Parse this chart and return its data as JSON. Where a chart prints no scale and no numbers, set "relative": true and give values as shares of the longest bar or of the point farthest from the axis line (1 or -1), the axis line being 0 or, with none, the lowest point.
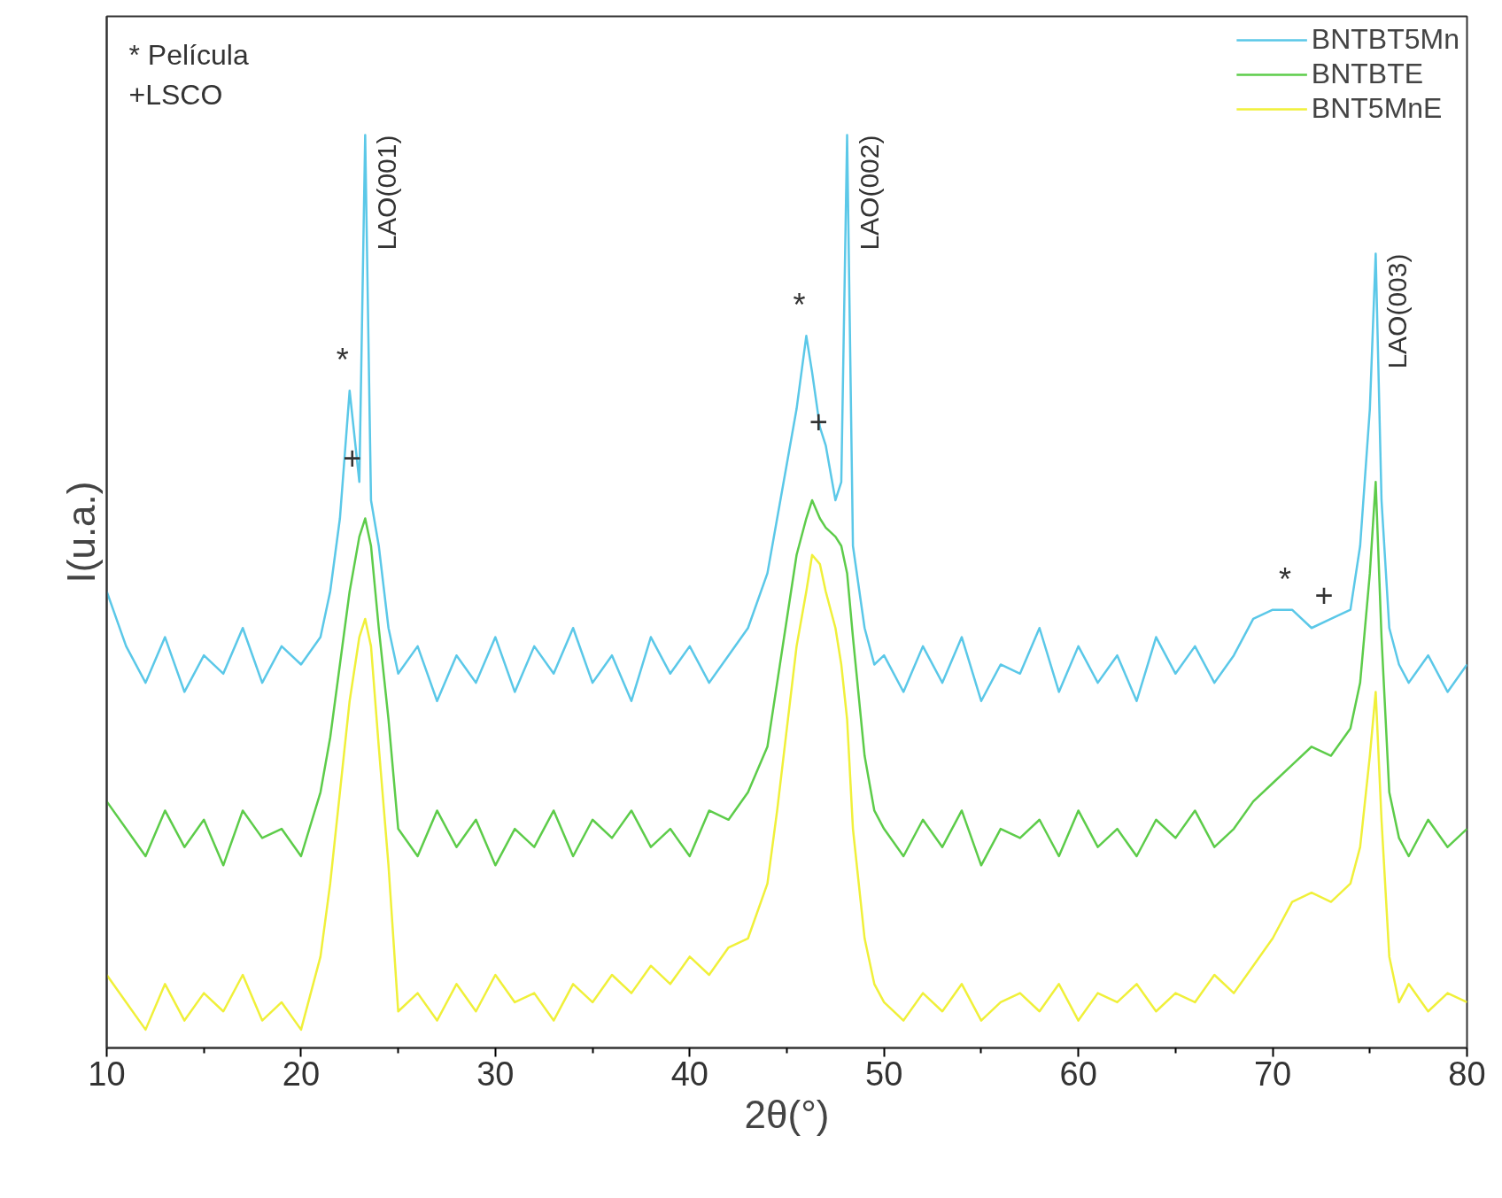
{
  "chart_data": {
    "type": "line",
    "relative": true,
    "xlabel": "2θ(°)",
    "ylabel": "I(u.a.)",
    "xlim": [
      10,
      80
    ],
    "xticks": [
      10,
      {
        "value": 15,
        "label": null
      },
      20,
      {
        "value": 25,
        "label": null
      },
      30,
      {
        "value": 35,
        "label": null
      },
      40,
      {
        "value": 45,
        "label": null
      },
      50,
      {
        "value": 55,
        "label": null
      },
      60,
      {
        "value": 65,
        "label": null
      },
      70,
      {
        "value": 75,
        "label": null
      },
      80
    ],
    "tick_labels": "x",
    "grid": false,
    "legend": "top right",
    "line_style": "solid",
    "marker": "none",
    "x": [
      10,
      11,
      12,
      13,
      14,
      15,
      16,
      17,
      18,
      19,
      20,
      21,
      21.5,
      22,
      22.5,
      23,
      23.3,
      23.6,
      24,
      24.5,
      25,
      26,
      27,
      28,
      29,
      30,
      31,
      32,
      33,
      34,
      35,
      36,
      37,
      38,
      39,
      40,
      41,
      42,
      43,
      44,
      44.5,
      45,
      45.5,
      46,
      46.3,
      46.7,
      47,
      47.5,
      47.8,
      48.1,
      48.4,
      49,
      49.5,
      50,
      51,
      52,
      53,
      54,
      55,
      56,
      57,
      58,
      59,
      60,
      61,
      62,
      63,
      64,
      65,
      66,
      67,
      68,
      69,
      70,
      71,
      72,
      73,
      74,
      74.5,
      75,
      75.3,
      75.6,
      76,
      76.5,
      77,
      78,
      79,
      80
    ],
    "series": [
      {
        "name": "BNTBT5Mn",
        "color": "#5bc8e8",
        "values": [
          0.5,
          0.44,
          0.4,
          0.45,
          0.39,
          0.43,
          0.41,
          0.46,
          0.4,
          0.44,
          0.42,
          0.45,
          0.5,
          0.58,
          0.72,
          0.62,
          1.0,
          0.6,
          0.55,
          0.46,
          0.41,
          0.44,
          0.38,
          0.43,
          0.4,
          0.45,
          0.39,
          0.44,
          0.41,
          0.46,
          0.4,
          0.43,
          0.38,
          0.45,
          0.41,
          0.44,
          0.4,
          0.43,
          0.46,
          0.52,
          0.58,
          0.64,
          0.7,
          0.78,
          0.74,
          0.68,
          0.66,
          0.6,
          0.62,
          1.0,
          0.55,
          0.46,
          0.42,
          0.43,
          0.39,
          0.44,
          0.4,
          0.45,
          0.38,
          0.42,
          0.41,
          0.46,
          0.39,
          0.44,
          0.4,
          0.43,
          0.38,
          0.45,
          0.41,
          0.44,
          0.4,
          0.43,
          0.47,
          0.48,
          0.48,
          0.46,
          0.47,
          0.48,
          0.55,
          0.7,
          0.87,
          0.6,
          0.46,
          0.42,
          0.4,
          0.43,
          0.39,
          0.42
        ]
      },
      {
        "name": "BNTBTE",
        "color": "#5dcc4a",
        "values": [
          0.27,
          0.24,
          0.21,
          0.26,
          0.22,
          0.25,
          0.2,
          0.26,
          0.23,
          0.24,
          0.21,
          0.28,
          0.34,
          0.42,
          0.5,
          0.56,
          0.58,
          0.55,
          0.46,
          0.36,
          0.24,
          0.21,
          0.26,
          0.22,
          0.25,
          0.2,
          0.24,
          0.22,
          0.26,
          0.21,
          0.25,
          0.23,
          0.26,
          0.22,
          0.24,
          0.21,
          0.26,
          0.25,
          0.28,
          0.33,
          0.4,
          0.47,
          0.54,
          0.58,
          0.6,
          0.58,
          0.57,
          0.56,
          0.55,
          0.52,
          0.45,
          0.32,
          0.26,
          0.24,
          0.21,
          0.25,
          0.22,
          0.26,
          0.2,
          0.24,
          0.23,
          0.25,
          0.21,
          0.26,
          0.22,
          0.24,
          0.21,
          0.25,
          0.23,
          0.26,
          0.22,
          0.24,
          0.27,
          0.29,
          0.31,
          0.33,
          0.32,
          0.35,
          0.4,
          0.52,
          0.62,
          0.45,
          0.28,
          0.23,
          0.21,
          0.25,
          0.22,
          0.24
        ]
      },
      {
        "name": "BNT5MnE",
        "color": "#f0f03a",
        "values": [
          0.08,
          0.05,
          0.02,
          0.07,
          0.03,
          0.06,
          0.04,
          0.08,
          0.03,
          0.05,
          0.02,
          0.1,
          0.18,
          0.28,
          0.38,
          0.45,
          0.47,
          0.44,
          0.33,
          0.2,
          0.04,
          0.06,
          0.03,
          0.07,
          0.04,
          0.08,
          0.05,
          0.06,
          0.03,
          0.07,
          0.05,
          0.08,
          0.06,
          0.09,
          0.07,
          0.1,
          0.08,
          0.11,
          0.12,
          0.18,
          0.26,
          0.35,
          0.44,
          0.5,
          0.54,
          0.53,
          0.5,
          0.46,
          0.42,
          0.36,
          0.24,
          0.12,
          0.07,
          0.05,
          0.03,
          0.06,
          0.04,
          0.07,
          0.03,
          0.05,
          0.06,
          0.04,
          0.07,
          0.03,
          0.06,
          0.05,
          0.07,
          0.04,
          0.06,
          0.05,
          0.08,
          0.06,
          0.09,
          0.12,
          0.16,
          0.17,
          0.16,
          0.18,
          0.22,
          0.32,
          0.39,
          0.25,
          0.1,
          0.05,
          0.07,
          0.04,
          0.06,
          0.05
        ]
      }
    ],
    "annotations": [
      "* Película",
      "+LSCO",
      {
        "text": "LAO(001)",
        "x": 23.3,
        "y": 1.0
      },
      {
        "text": "LAO(002)",
        "x": 48.1,
        "y": 1.0
      },
      {
        "text": "LAO(003)",
        "x": 75.3,
        "y": 0.87
      },
      {
        "text": "*",
        "x": 22.5,
        "y": 0.72
      },
      {
        "text": "+",
        "x": 23.0,
        "y": 0.62
      },
      {
        "text": "*",
        "x": 46.0,
        "y": 0.78
      },
      {
        "text": "+",
        "x": 47.0,
        "y": 0.66
      },
      {
        "text": "*",
        "x": 71.0,
        "y": 0.48
      },
      {
        "text": "+",
        "x": 73.0,
        "y": 0.47
      }
    ]
  }
}
